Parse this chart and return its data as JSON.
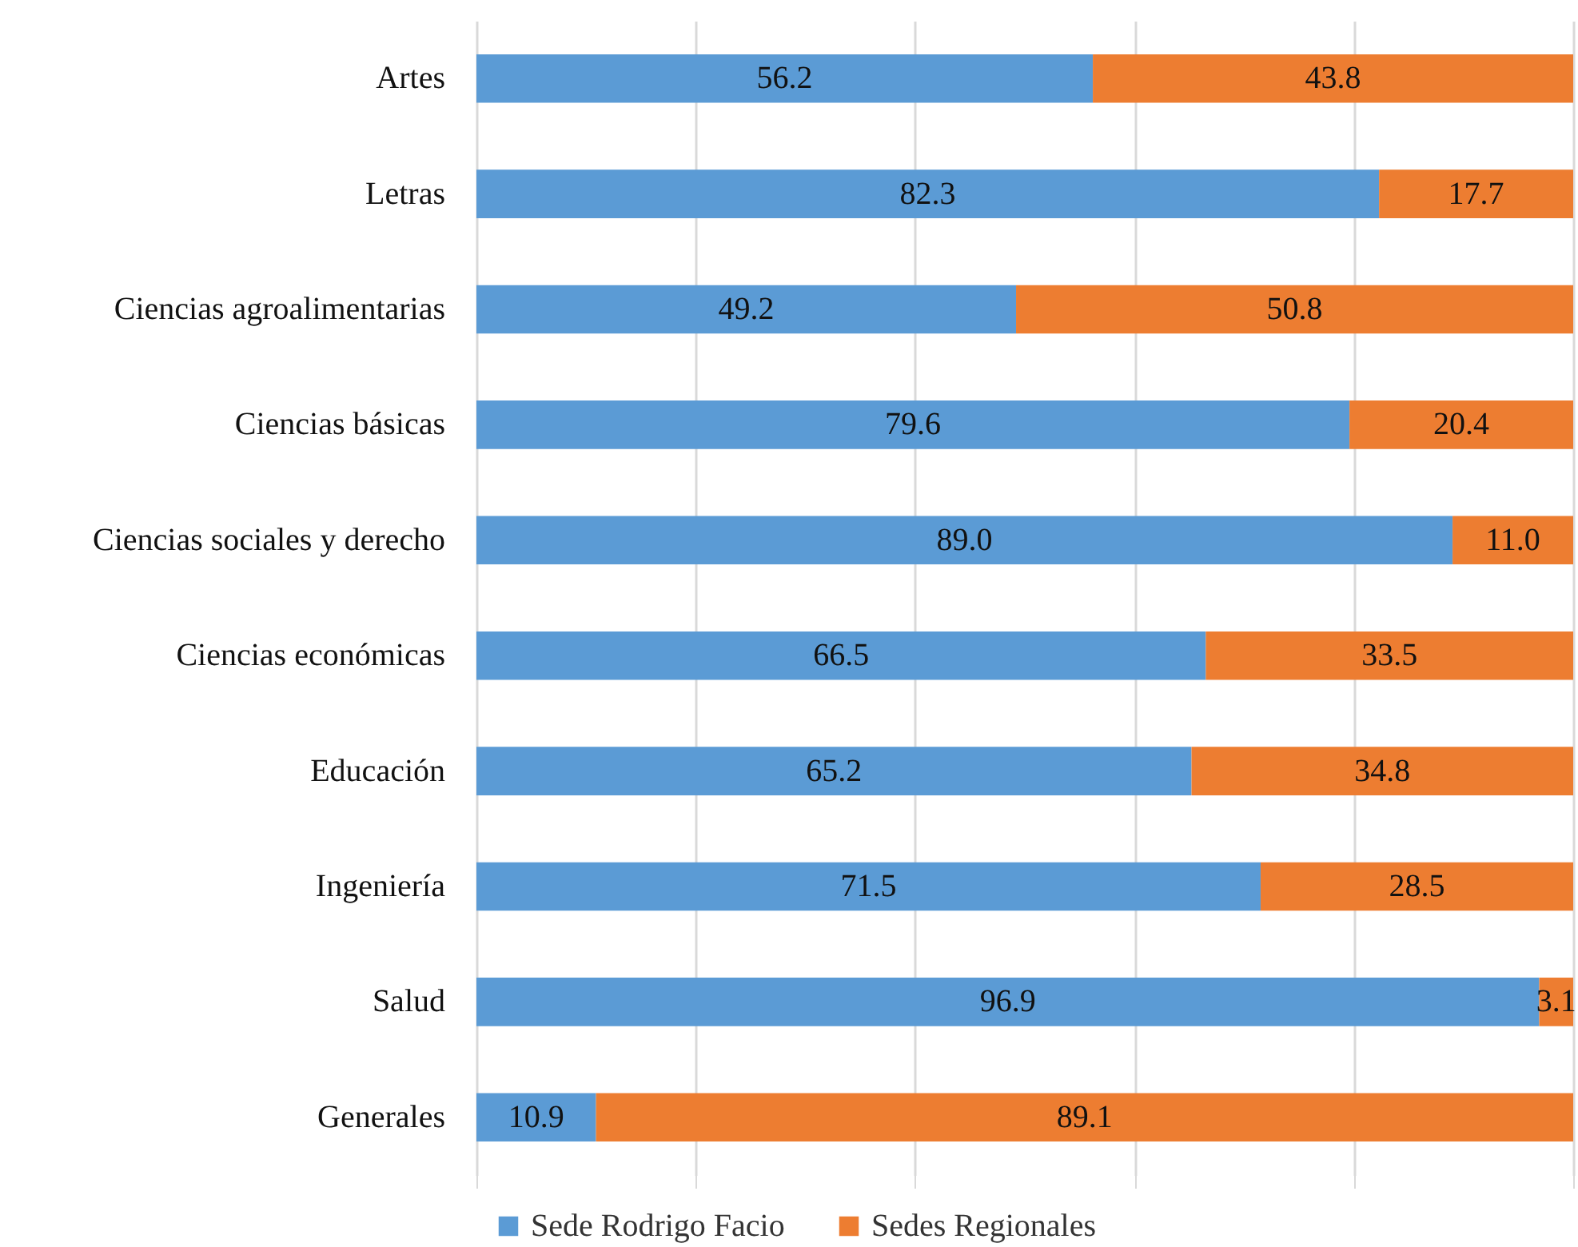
{
  "chart_data": {
    "type": "bar",
    "orientation": "horizontal",
    "stacked": true,
    "categories": [
      "Artes",
      "Letras",
      "Ciencias agroalimentarias",
      "Ciencias básicas",
      "Ciencias sociales y derecho",
      "Ciencias económicas",
      "Educación",
      "Ingeniería",
      "Salud",
      "Generales"
    ],
    "series": [
      {
        "name": "Sede Rodrigo Facio",
        "color": "#5b9bd5",
        "values": [
          56.2,
          82.3,
          49.2,
          79.6,
          89.0,
          66.5,
          65.2,
          71.5,
          96.9,
          10.9
        ],
        "value_labels": [
          "56.2",
          "82.3",
          "49.2",
          "79.6",
          "89.0",
          "66.5",
          "65.2",
          "71.5",
          "96.9",
          "10.9"
        ]
      },
      {
        "name": "Sedes Regionales",
        "color": "#ed7d31",
        "values": [
          43.8,
          17.7,
          50.8,
          20.4,
          11.0,
          33.5,
          34.8,
          28.5,
          3.1,
          89.1
        ],
        "value_labels": [
          "43.8",
          "17.7",
          "50.8",
          "20.4",
          "11.0",
          "33.5",
          "34.8",
          "28.5",
          "3.1",
          "89.1"
        ]
      }
    ],
    "xlim": [
      0,
      100
    ],
    "xticks": [
      {
        "value": 0,
        "label": null
      },
      {
        "value": 20,
        "label": null
      },
      {
        "value": 40,
        "label": null
      },
      {
        "value": 60,
        "label": null
      },
      {
        "value": 80,
        "label": null
      },
      {
        "value": 100,
        "label": null
      }
    ],
    "tick_labels": "y",
    "grid": "x",
    "legend": "bottom"
  }
}
